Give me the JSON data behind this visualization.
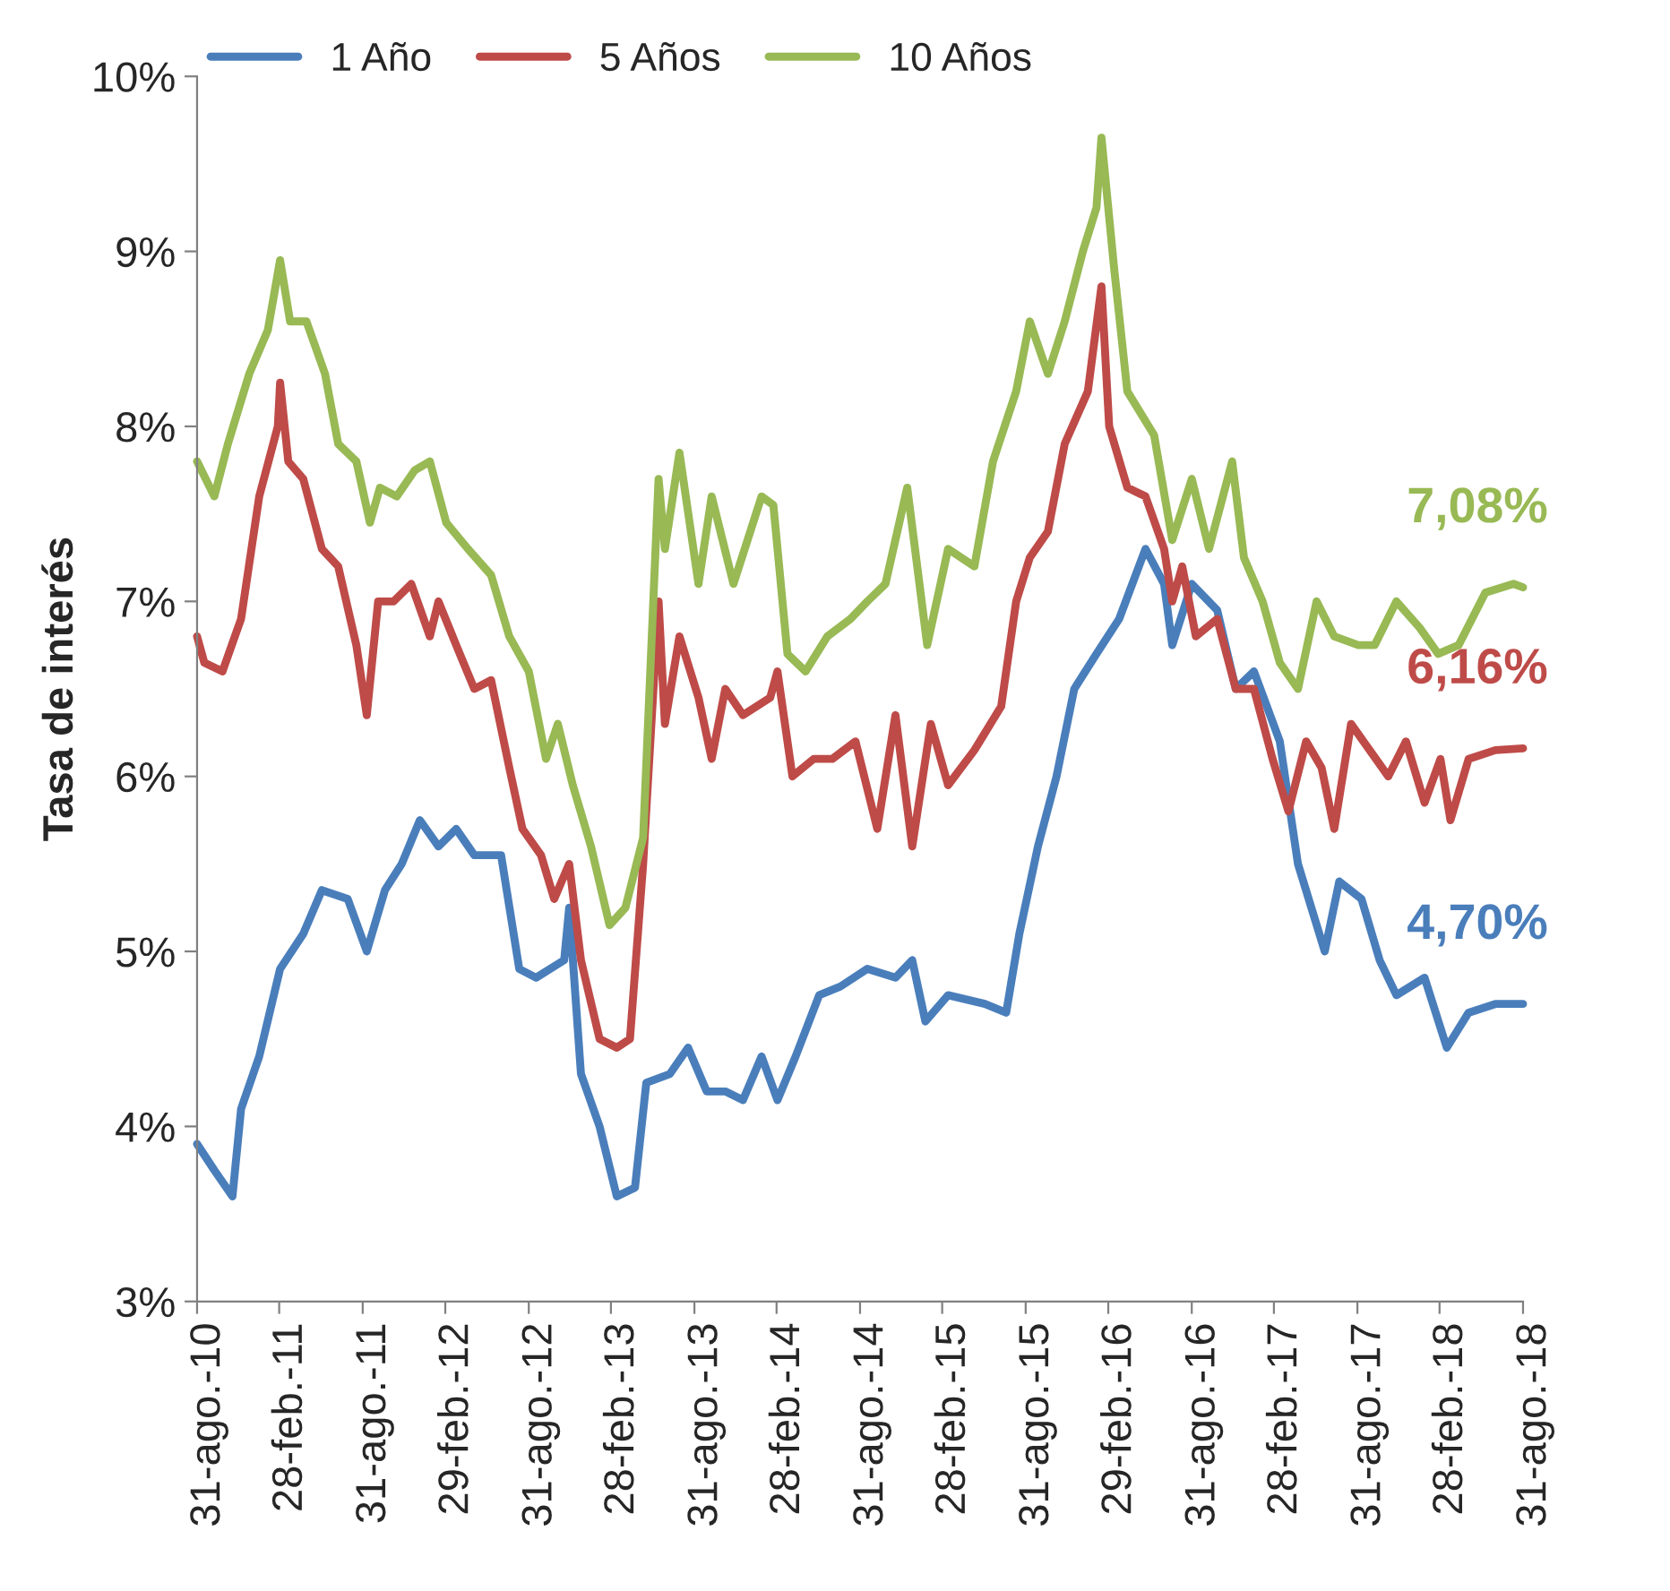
{
  "chart_data": {
    "type": "line",
    "ylabel": "Tasa de interés",
    "xlim": [
      "2010-08-31",
      "2018-08-31"
    ],
    "xticks": [
      {
        "value": "2010-08-31",
        "label": "31-ago.-10"
      },
      {
        "value": "2011-02-28",
        "label": "28-feb.-11"
      },
      {
        "value": "2011-08-31",
        "label": "31-ago.-11"
      },
      {
        "value": "2012-02-29",
        "label": "29-feb.-12"
      },
      {
        "value": "2012-08-31",
        "label": "31-ago.-12"
      },
      {
        "value": "2013-02-28",
        "label": "28-feb.-13"
      },
      {
        "value": "2013-08-31",
        "label": "31-ago.-13"
      },
      {
        "value": "2014-02-28",
        "label": "28-feb.-14"
      },
      {
        "value": "2014-08-31",
        "label": "31-ago.-14"
      },
      {
        "value": "2015-02-28",
        "label": "28-feb.-15"
      },
      {
        "value": "2015-08-31",
        "label": "31-ago.-15"
      },
      {
        "value": "2016-02-29",
        "label": "29-feb.-16"
      },
      {
        "value": "2016-08-31",
        "label": "31-ago.-16"
      },
      {
        "value": "2017-02-28",
        "label": "28-feb.-17"
      },
      {
        "value": "2017-08-31",
        "label": "31-ago.-17"
      },
      {
        "value": "2018-02-28",
        "label": "28-feb.-18"
      },
      {
        "value": "2018-08-31",
        "label": "31-ago.-18"
      }
    ],
    "ylim": [
      3,
      10
    ],
    "yticks": [
      {
        "value": 3,
        "label": "3%"
      },
      {
        "value": 4,
        "label": "4%"
      },
      {
        "value": 5,
        "label": "5%"
      },
      {
        "value": 6,
        "label": "6%"
      },
      {
        "value": 7,
        "label": "7%"
      },
      {
        "value": 8,
        "label": "8%"
      },
      {
        "value": 9,
        "label": "9%"
      },
      {
        "value": 10,
        "label": "10%"
      }
    ],
    "grid": false,
    "legend": "top",
    "marker": "none",
    "line_style": "solid",
    "series": [
      {
        "name": "1 Año",
        "color": "#4a7ebb",
        "x": [
          "2010-08-31",
          "2010-10-08",
          "2010-11-17",
          "2010-12-06",
          "2011-01-15",
          "2011-03-02",
          "2011-04-22",
          "2011-06-02",
          "2011-07-29",
          "2011-09-09",
          "2011-10-19",
          "2011-11-25",
          "2012-01-04",
          "2012-02-14",
          "2012-03-24",
          "2012-05-03",
          "2012-07-01",
          "2012-08-10",
          "2012-09-16",
          "2012-11-17",
          "2012-11-28",
          "2012-12-24",
          "2013-02-03",
          "2013-03-13",
          "2013-04-22",
          "2013-05-17",
          "2013-07-08",
          "2013-08-17",
          "2013-09-27",
          "2013-11-07",
          "2013-12-16",
          "2014-01-26",
          "2014-03-02",
          "2014-04-11",
          "2014-06-02",
          "2014-07-19",
          "2014-09-16",
          "2014-11-17",
          "2014-12-24",
          "2015-01-22",
          "2015-03-13",
          "2015-06-02",
          "2015-07-19",
          "2015-08-17",
          "2015-09-27",
          "2015-11-07",
          "2015-12-16",
          "2016-02-03",
          "2016-03-24",
          "2016-05-21",
          "2016-07-01",
          "2016-07-19",
          "2016-08-31",
          "2016-10-26",
          "2016-12-06",
          "2017-01-15",
          "2017-03-13",
          "2017-04-22",
          "2017-06-20",
          "2017-07-22",
          "2017-09-09",
          "2017-10-19",
          "2017-11-25",
          "2018-01-26",
          "2018-03-16",
          "2018-05-03",
          "2018-07-01",
          "2018-08-31"
        ],
        "values": [
          3.9,
          3.75,
          3.6,
          4.1,
          4.4,
          4.9,
          5.1,
          5.35,
          5.3,
          5.0,
          5.35,
          5.5,
          5.75,
          5.6,
          5.7,
          5.55,
          5.55,
          4.9,
          4.85,
          4.95,
          5.25,
          4.3,
          4.0,
          3.6,
          3.65,
          4.25,
          4.3,
          4.45,
          4.2,
          4.2,
          4.15,
          4.4,
          4.15,
          4.4,
          4.75,
          4.8,
          4.9,
          4.85,
          4.95,
          4.6,
          4.75,
          4.7,
          4.65,
          5.1,
          5.6,
          6.0,
          6.5,
          6.7,
          6.9,
          7.3,
          7.1,
          6.75,
          7.1,
          6.95,
          6.5,
          6.6,
          6.2,
          5.5,
          5.0,
          5.4,
          5.3,
          4.95,
          4.75,
          4.85,
          4.45,
          4.65,
          4.7,
          4.7
        ]
      },
      {
        "name": "5 Años",
        "color": "#be4b48",
        "x": [
          "2010-08-31",
          "2010-09-16",
          "2010-10-26",
          "2010-12-06",
          "2011-01-15",
          "2011-02-25",
          "2011-03-02",
          "2011-03-20",
          "2011-04-22",
          "2011-06-02",
          "2011-07-08",
          "2011-08-17",
          "2011-09-09",
          "2011-10-04",
          "2011-11-07",
          "2011-12-16",
          "2012-01-26",
          "2012-02-14",
          "2012-03-24",
          "2012-05-03",
          "2012-06-09",
          "2012-07-19",
          "2012-08-17",
          "2012-09-27",
          "2012-10-26",
          "2012-11-28",
          "2012-12-24",
          "2013-02-03",
          "2013-03-13",
          "2013-04-11",
          "2013-05-10",
          "2013-06-13",
          "2013-06-27",
          "2013-07-29",
          "2013-09-09",
          "2013-10-08",
          "2013-11-07",
          "2013-12-16",
          "2014-02-14",
          "2014-03-02",
          "2014-04-04",
          "2014-05-21",
          "2014-07-01",
          "2014-08-21",
          "2014-10-08",
          "2014-11-17",
          "2014-12-24",
          "2015-02-03",
          "2015-03-13",
          "2015-05-10",
          "2015-07-08",
          "2015-08-10",
          "2015-09-09",
          "2015-10-19",
          "2015-11-25",
          "2016-01-15",
          "2016-02-14",
          "2016-03-02",
          "2016-04-11",
          "2016-05-21",
          "2016-07-01",
          "2016-07-19",
          "2016-08-10",
          "2016-09-09",
          "2016-10-26",
          "2016-12-06",
          "2017-01-15",
          "2017-02-25",
          "2017-04-01",
          "2017-05-10",
          "2017-06-13",
          "2017-07-11",
          "2017-08-17",
          "2017-09-27",
          "2017-11-07",
          "2017-12-16",
          "2018-01-26",
          "2018-03-02",
          "2018-03-24",
          "2018-05-03",
          "2018-07-01",
          "2018-08-31"
        ],
        "values": [
          6.8,
          6.65,
          6.6,
          6.9,
          7.6,
          8.0,
          8.25,
          7.8,
          7.7,
          7.3,
          7.2,
          6.75,
          6.35,
          7.0,
          7.0,
          7.1,
          6.8,
          7.0,
          6.75,
          6.5,
          6.55,
          6.05,
          5.7,
          5.55,
          5.3,
          5.5,
          4.95,
          4.5,
          4.45,
          4.5,
          5.5,
          7.0,
          6.3,
          6.8,
          6.45,
          6.1,
          6.5,
          6.35,
          6.45,
          6.6,
          6.0,
          6.1,
          6.1,
          6.2,
          5.7,
          6.35,
          5.6,
          6.3,
          5.95,
          6.15,
          6.4,
          7.0,
          7.25,
          7.4,
          7.9,
          8.2,
          8.8,
          8.0,
          7.65,
          7.6,
          7.3,
          7.0,
          7.2,
          6.8,
          6.9,
          6.5,
          6.5,
          6.1,
          5.8,
          6.2,
          6.05,
          5.7,
          6.3,
          6.15,
          6.0,
          6.2,
          5.85,
          6.1,
          5.75,
          6.1,
          6.15,
          6.16
        ]
      },
      {
        "name": "10 Años",
        "color": "#98b954",
        "x": [
          "2010-08-31",
          "2010-10-08",
          "2010-11-07",
          "2010-12-24",
          "2011-02-03",
          "2011-03-02",
          "2011-03-24",
          "2011-04-29",
          "2011-06-09",
          "2011-07-08",
          "2011-08-17",
          "2011-09-16",
          "2011-10-08",
          "2011-11-14",
          "2011-12-24",
          "2012-01-26",
          "2012-03-02",
          "2012-04-19",
          "2012-06-09",
          "2012-07-19",
          "2012-08-31",
          "2012-10-08",
          "2012-11-03",
          "2012-12-06",
          "2013-01-15",
          "2013-02-25",
          "2013-04-01",
          "2013-05-10",
          "2013-06-13",
          "2013-06-27",
          "2013-07-29",
          "2013-09-09",
          "2013-10-08",
          "2013-11-25",
          "2014-01-26",
          "2014-02-21",
          "2014-03-24",
          "2014-05-03",
          "2014-06-20",
          "2014-08-10",
          "2014-09-16",
          "2014-10-26",
          "2014-12-13",
          "2015-01-26",
          "2015-03-13",
          "2015-05-10",
          "2015-06-20",
          "2015-08-10",
          "2015-09-09",
          "2015-10-19",
          "2015-11-25",
          "2016-01-04",
          "2016-02-03",
          "2016-02-14",
          "2016-03-13",
          "2016-04-11",
          "2016-06-09",
          "2016-07-19",
          "2016-08-31",
          "2016-10-08",
          "2016-11-28",
          "2016-12-24",
          "2017-02-03",
          "2017-03-13",
          "2017-04-22",
          "2017-06-02",
          "2017-07-11",
          "2017-09-02",
          "2017-10-08",
          "2017-11-25",
          "2018-01-15",
          "2018-02-25",
          "2018-04-11",
          "2018-06-09",
          "2018-08-10",
          "2018-08-31"
        ],
        "values": [
          7.8,
          7.6,
          7.9,
          8.3,
          8.55,
          8.95,
          8.6,
          8.6,
          8.3,
          7.9,
          7.8,
          7.45,
          7.65,
          7.6,
          7.75,
          7.8,
          7.45,
          7.3,
          7.15,
          6.8,
          6.6,
          6.1,
          6.3,
          5.95,
          5.6,
          5.15,
          5.25,
          5.65,
          7.7,
          7.3,
          7.85,
          7.1,
          7.6,
          7.1,
          7.6,
          7.55,
          6.7,
          6.6,
          6.8,
          6.9,
          7.0,
          7.1,
          7.65,
          6.75,
          7.3,
          7.2,
          7.8,
          8.2,
          8.6,
          8.3,
          8.6,
          9.0,
          9.25,
          9.65,
          8.9,
          8.2,
          7.95,
          7.35,
          7.7,
          7.3,
          7.8,
          7.25,
          7.0,
          6.65,
          6.5,
          7.0,
          6.8,
          6.75,
          6.75,
          7.0,
          6.85,
          6.7,
          6.75,
          7.05,
          7.1,
          7.08
        ]
      }
    ],
    "annotations": [
      {
        "text": "4,70%",
        "x": "2018-08-31",
        "y": 4.7
      },
      {
        "text": "6,16%",
        "x": "2018-08-31",
        "y": 6.16
      },
      {
        "text": "7,08%",
        "x": "2018-08-31",
        "y": 7.08
      }
    ]
  }
}
